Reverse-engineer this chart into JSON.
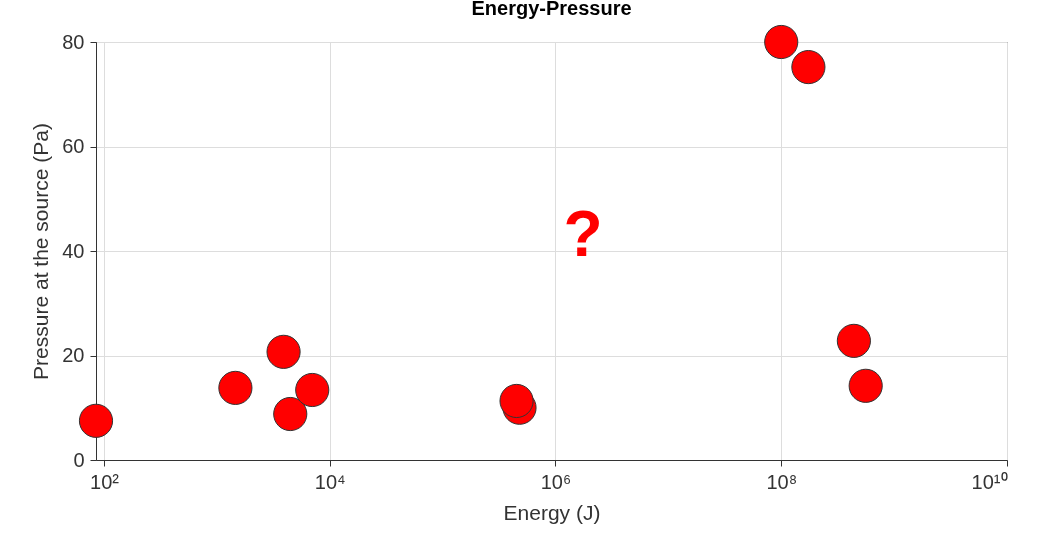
{
  "chart_data": {
    "type": "scatter",
    "title": "Energy-Pressure",
    "xlabel": "Energy (J)",
    "ylabel": "Pressure at the source (Pa)",
    "x": [
      85,
      1460,
      3900,
      4470,
      7000,
      480000,
      452000,
      100000000,
      174000000,
      440000000,
      560000000
    ],
    "series": [
      {
        "color": "#ff0000",
        "values": [
          7.5,
          13.8,
          20.7,
          8.8,
          13.4,
          10,
          11.3,
          80,
          75.2,
          22.8,
          14.2
        ]
      }
    ],
    "log": "x",
    "xlim": [
      85,
      10000000000
    ],
    "xticks": [
      {
        "value": 100,
        "label": "10²"
      },
      {
        "value": 10000,
        "label": "10⁴"
      },
      {
        "value": 1000000,
        "label": "10⁶"
      },
      {
        "value": 100000000,
        "label": "10⁸"
      },
      {
        "value": 10000000000,
        "label": "10¹⁰"
      }
    ],
    "ylim": [
      0,
      80
    ],
    "yticks": [
      0,
      20,
      40,
      60,
      80
    ],
    "grid": true,
    "marker": "circle",
    "annotations": [
      "?"
    ]
  }
}
